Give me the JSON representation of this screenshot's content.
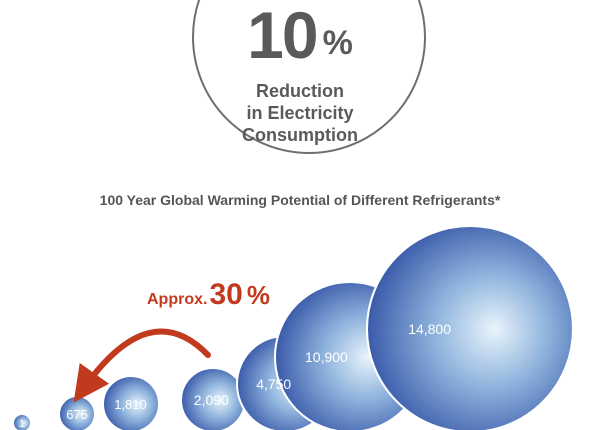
{
  "headline": {
    "value": "10",
    "unit": "%",
    "line1": "Reduction",
    "line2": "in Electricity",
    "line3": "Consumption"
  },
  "chart_data": {
    "type": "bubble",
    "title": "100 Year Global Warming Potential of Different Refrigerants*",
    "values": [
      1,
      675,
      1810,
      2090,
      4750,
      10900,
      14800
    ],
    "labels": [
      "1",
      "675",
      "1,810",
      "2,090",
      "4,750",
      "10,900",
      "14,800"
    ],
    "annotation": {
      "prefix": "Approx.",
      "value": "30",
      "unit": "%",
      "from": "2,090",
      "to": "675"
    },
    "colors": {
      "bubble_light": "#e9f4fc",
      "bubble_dark": "#2f4fa3",
      "arrow": "#c23a1e"
    }
  }
}
